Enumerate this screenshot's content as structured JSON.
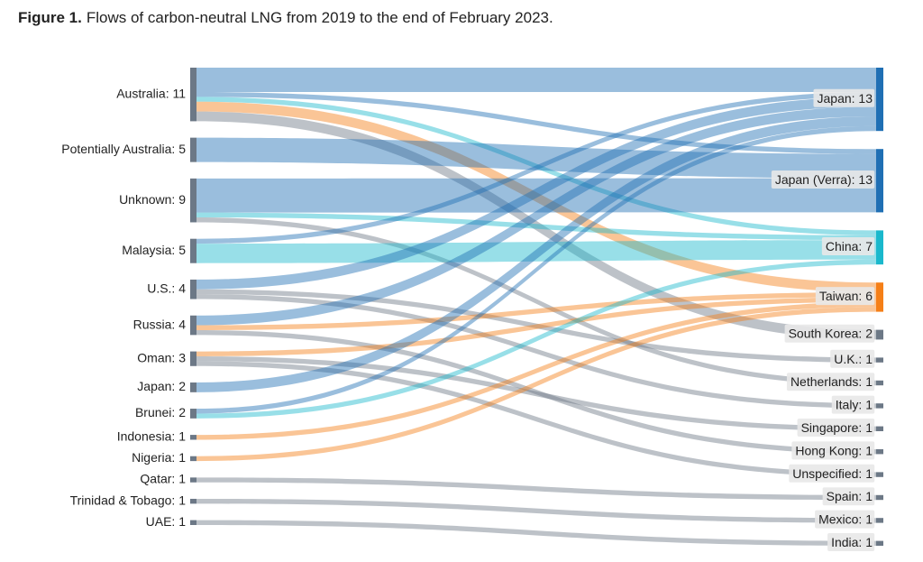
{
  "chart_data": {
    "type": "sankey",
    "title": {
      "lead": "Figure 1.",
      "text": "Flows of carbon-neutral LNG from 2019 to the end of February 2023."
    },
    "sources": [
      {
        "label": "Australia: 11",
        "value": 11,
        "color": "#6c7886"
      },
      {
        "label": "Potentially Australia: 5",
        "value": 5,
        "color": "#6c7886"
      },
      {
        "label": "Unknown: 9",
        "value": 9,
        "color": "#6c7886"
      },
      {
        "label": "Malaysia: 5",
        "value": 5,
        "color": "#6c7886"
      },
      {
        "label": "U.S.: 4",
        "value": 4,
        "color": "#6c7886"
      },
      {
        "label": "Russia: 4",
        "value": 4,
        "color": "#6c7886"
      },
      {
        "label": "Oman: 3",
        "value": 3,
        "color": "#6c7886"
      },
      {
        "label": "Japan: 2",
        "value": 2,
        "color": "#6c7886"
      },
      {
        "label": "Brunei: 2",
        "value": 2,
        "color": "#6c7886"
      },
      {
        "label": "Indonesia: 1",
        "value": 1,
        "color": "#6c7886"
      },
      {
        "label": "Nigeria: 1",
        "value": 1,
        "color": "#6c7886"
      },
      {
        "label": "Qatar: 1",
        "value": 1,
        "color": "#6c7886"
      },
      {
        "label": "Trinidad & Tobago: 1",
        "value": 1,
        "color": "#6c7886"
      },
      {
        "label": "UAE: 1",
        "value": 1,
        "color": "#6c7886"
      }
    ],
    "targets": [
      {
        "label": "Japan: 13",
        "value": 13,
        "color": "#1f6fb4"
      },
      {
        "label": "Japan (Verra): 13",
        "value": 13,
        "color": "#1f6fb4"
      },
      {
        "label": "China: 7",
        "value": 7,
        "color": "#1ab8cc"
      },
      {
        "label": "Taiwan: 6",
        "value": 6,
        "color": "#f57f17"
      },
      {
        "label": "South Korea: 2",
        "value": 2,
        "color": "#6c7886"
      },
      {
        "label": "U.K.: 1",
        "value": 1,
        "color": "#6c7886"
      },
      {
        "label": "Netherlands: 1",
        "value": 1,
        "color": "#6c7886"
      },
      {
        "label": "Italy: 1",
        "value": 1,
        "color": "#6c7886"
      },
      {
        "label": "Singapore: 1",
        "value": 1,
        "color": "#6c7886"
      },
      {
        "label": "Hong Kong: 1",
        "value": 1,
        "color": "#6c7886"
      },
      {
        "label": "Unspecified: 1",
        "value": 1,
        "color": "#6c7886"
      },
      {
        "label": "Spain: 1",
        "value": 1,
        "color": "#6c7886"
      },
      {
        "label": "Mexico: 1",
        "value": 1,
        "color": "#6c7886"
      },
      {
        "label": "India: 1",
        "value": 1,
        "color": "#6c7886"
      }
    ],
    "links": [
      {
        "source": 0,
        "target": 0,
        "value": 5
      },
      {
        "source": 0,
        "target": 1,
        "value": 1
      },
      {
        "source": 0,
        "target": 2,
        "value": 1
      },
      {
        "source": 0,
        "target": 3,
        "value": 2
      },
      {
        "source": 0,
        "target": 4,
        "value": 2
      },
      {
        "source": 1,
        "target": 1,
        "value": 5
      },
      {
        "source": 2,
        "target": 1,
        "value": 7
      },
      {
        "source": 2,
        "target": 2,
        "value": 1
      },
      {
        "source": 2,
        "target": 6,
        "value": 1
      },
      {
        "source": 3,
        "target": 0,
        "value": 1
      },
      {
        "source": 3,
        "target": 2,
        "value": 4
      },
      {
        "source": 4,
        "target": 0,
        "value": 2
      },
      {
        "source": 4,
        "target": 5,
        "value": 1
      },
      {
        "source": 4,
        "target": 7,
        "value": 1
      },
      {
        "source": 5,
        "target": 0,
        "value": 2
      },
      {
        "source": 5,
        "target": 3,
        "value": 1
      },
      {
        "source": 5,
        "target": 9,
        "value": 1
      },
      {
        "source": 6,
        "target": 3,
        "value": 1
      },
      {
        "source": 6,
        "target": 8,
        "value": 1
      },
      {
        "source": 6,
        "target": 10,
        "value": 1
      },
      {
        "source": 7,
        "target": 0,
        "value": 2
      },
      {
        "source": 8,
        "target": 0,
        "value": 1
      },
      {
        "source": 8,
        "target": 2,
        "value": 1
      },
      {
        "source": 9,
        "target": 3,
        "value": 1
      },
      {
        "source": 10,
        "target": 3,
        "value": 1
      },
      {
        "source": 11,
        "target": 11,
        "value": 1
      },
      {
        "source": 12,
        "target": 12,
        "value": 1
      },
      {
        "source": 13,
        "target": 13,
        "value": 1
      }
    ]
  }
}
